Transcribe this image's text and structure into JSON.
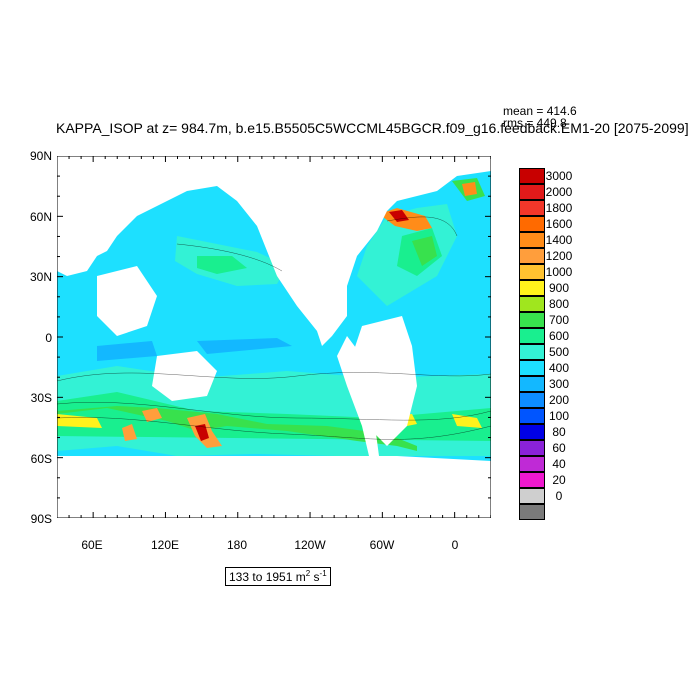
{
  "title": "KAPPA_ISOP at z= 984.7m, b.e15.B5505C5WCCML45BGCR.f09_g16.feedback.EM1-20 [2075-2099]",
  "stats": {
    "mean": "mean = 414.6",
    "rms": "rms = 449.8"
  },
  "axes": {
    "y_ticks": [
      "90N",
      "60N",
      "30N",
      "0",
      "30S",
      "60S",
      "90S"
    ],
    "x_ticks": [
      "60E",
      "120E",
      "180",
      "120W",
      "60W",
      "0"
    ]
  },
  "legend": {
    "levels": [
      "3000",
      "2000",
      "1800",
      "1600",
      "1400",
      "1200",
      "1000",
      "900",
      "800",
      "700",
      "600",
      "500",
      "400",
      "300",
      "200",
      "100",
      "80",
      "60",
      "40",
      "20",
      "0"
    ],
    "colors": [
      "#c80000",
      "#e11a1a",
      "#f2372a",
      "#ff6a00",
      "#ff8c19",
      "#ff9e3c",
      "#ffc230",
      "#fff21c",
      "#a0e61e",
      "#38e14d",
      "#19ef8f",
      "#33f2d5",
      "#1de0ff",
      "#13b8ff",
      "#0d8cff",
      "#0055ff",
      "#0000e6",
      "#8a22d8",
      "#bf2ad6",
      "#ef18cf",
      "#cfcfcf",
      "#7a7a7a"
    ]
  },
  "range_label": {
    "text": "133 to 1951 m",
    "sup1": "2",
    "mid": " s",
    "sup2": "-1"
  },
  "map": {
    "land_color": "#ffffff",
    "ocean_base": "#1de0ff"
  }
}
